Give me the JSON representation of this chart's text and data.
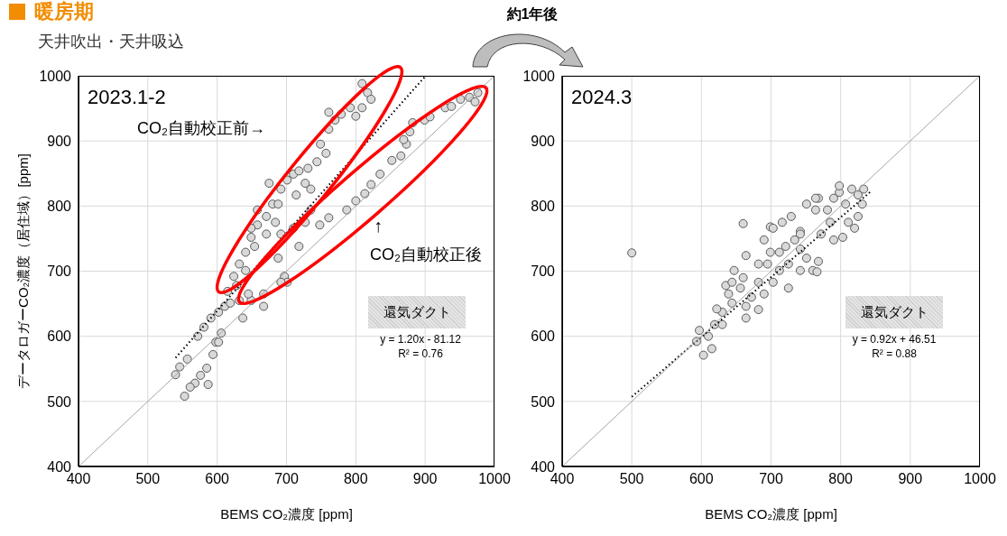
{
  "chart_data": [
    {
      "type": "scatter",
      "title": "暖房期",
      "subtitle": "天井吹出・天井吸込",
      "xlabel": "BEMS CO₂濃度 [ppm]",
      "ylabel": "データロガーCO₂濃度（居住域）[ppm]",
      "xlim": [
        400,
        1000
      ],
      "xticks": [
        400,
        500,
        600,
        700,
        800,
        900,
        1000
      ],
      "ylim": [
        400,
        1000
      ],
      "yticks": [
        400,
        500,
        600,
        700,
        800,
        900,
        1000
      ],
      "grid": true,
      "annotations": [
        "2023.1-2",
        "CO₂自動校正前→",
        "↑",
        "CO₂自動校正後",
        "還気ダクト",
        "y = 1.20x - 81.12",
        "R² = 0.76"
      ],
      "series": [
        {
          "marker": "circle",
          "color": "#d9d9d9",
          "x": [
            540,
            553,
            546,
            557,
            568,
            576,
            585,
            594,
            598,
            606,
            572,
            581,
            591,
            602,
            611,
            619,
            632,
            649,
            667,
            615,
            624,
            632,
            641,
            649,
            658,
            671,
            680,
            692,
            701,
            710,
            718,
            731,
            744,
            757,
            749,
            761,
            770,
            761,
            779,
            792,
            809,
            817,
            822,
            800,
            809,
            675,
            658,
            649,
            684,
            692,
            688,
            697,
            701,
            718,
            710,
            727,
            735,
            748,
            761,
            787,
            800,
            813,
            822,
            835,
            852,
            865,
            873,
            869,
            878,
            882,
            899,
            907,
            929,
            938,
            951,
            964,
            976,
            972,
            667,
            692,
            645,
            628,
            637,
            602,
            587,
            561,
            735,
            727,
            714,
            688,
            671,
            654,
            641
          ],
          "values": [
            541,
            508,
            553,
            565,
            528,
            540,
            551,
            572,
            591,
            605,
            600,
            614,
            628,
            637,
            646,
            651,
            655,
            655,
            646,
            669,
            692,
            711,
            729,
            752,
            771,
            784,
            803,
            826,
            840,
            849,
            854,
            858,
            868,
            881,
            895,
            918,
            932,
            944,
            941,
            951,
            988,
            974,
            964,
            938,
            951,
            835,
            794,
            766,
            775,
            757,
            720,
            692,
            683,
            738,
            766,
            775,
            794,
            771,
            782,
            794,
            808,
            819,
            833,
            849,
            870,
            877,
            895,
            902,
            914,
            928,
            932,
            937,
            951,
            953,
            964,
            967,
            974,
            960,
            665,
            683,
            665,
            678,
            628,
            591,
            526,
            522,
            826,
            835,
            817,
            803,
            757,
            738,
            701
          ]
        },
        {
          "type": "line",
          "marker": "none",
          "line_style": "dotted",
          "color": "#000000",
          "x": [
            540,
            900
          ],
          "values": [
            567,
            999
          ]
        },
        {
          "type": "line",
          "marker": "none",
          "line_style": "solid",
          "color": "#a6a6a6",
          "x": [
            400,
            1000
          ],
          "values": [
            400,
            1000
          ]
        }
      ]
    },
    {
      "type": "scatter",
      "xlabel": "BEMS CO₂濃度 [ppm]",
      "xlim": [
        400,
        1000
      ],
      "xticks": [
        400,
        500,
        600,
        700,
        800,
        900,
        1000
      ],
      "ylim": [
        400,
        1000
      ],
      "yticks": [
        400,
        500,
        600,
        700,
        800,
        900,
        1000
      ],
      "grid": true,
      "annotations": [
        "2024.3",
        "還気ダクト",
        "y = 0.92x + 46.51",
        "R² = 0.88",
        "約1年後"
      ],
      "series": [
        {
          "marker": "circle",
          "color": "#d9d9d9",
          "x": [
            500,
            603,
            593,
            597,
            615,
            610,
            619,
            630,
            639,
            635,
            647,
            660,
            664,
            660,
            672,
            682,
            664,
            690,
            682,
            690,
            699,
            703,
            716,
            729,
            703,
            712,
            725,
            721,
            734,
            742,
            751,
            764,
            760,
            768,
            751,
            742,
            772,
            785,
            790,
            803,
            811,
            807,
            790,
            768,
            781,
            798,
            816,
            825,
            833,
            831,
            825,
            820,
            798,
            764,
            742,
            712,
            695,
            682,
            656,
            644,
            622,
            630,
            664,
            699,
            725,
            766,
            644,
            742
          ],
          "values": [
            728,
            571,
            592,
            609,
            581,
            600,
            618,
            637,
            665,
            678,
            701,
            773,
            724,
            690,
            660,
            641,
            628,
            665,
            711,
            748,
            768,
            766,
            775,
            784,
            683,
            701,
            711,
            738,
            748,
            761,
            803,
            794,
            701,
            715,
            720,
            734,
            757,
            775,
            748,
            752,
            775,
            803,
            812,
            812,
            794,
            821,
            826,
            817,
            826,
            803,
            784,
            766,
            831,
            812,
            757,
            729,
            711,
            683,
            674,
            651,
            642,
            618,
            646,
            729,
            674,
            699,
            683,
            701
          ]
        },
        {
          "type": "line",
          "marker": "none",
          "line_style": "dotted",
          "color": "#000000",
          "x": [
            500,
            845
          ],
          "values": [
            507,
            824
          ]
        },
        {
          "type": "line",
          "marker": "none",
          "line_style": "solid",
          "color": "#a6a6a6",
          "x": [
            400,
            1000
          ],
          "values": [
            400,
            1000
          ]
        }
      ]
    }
  ]
}
